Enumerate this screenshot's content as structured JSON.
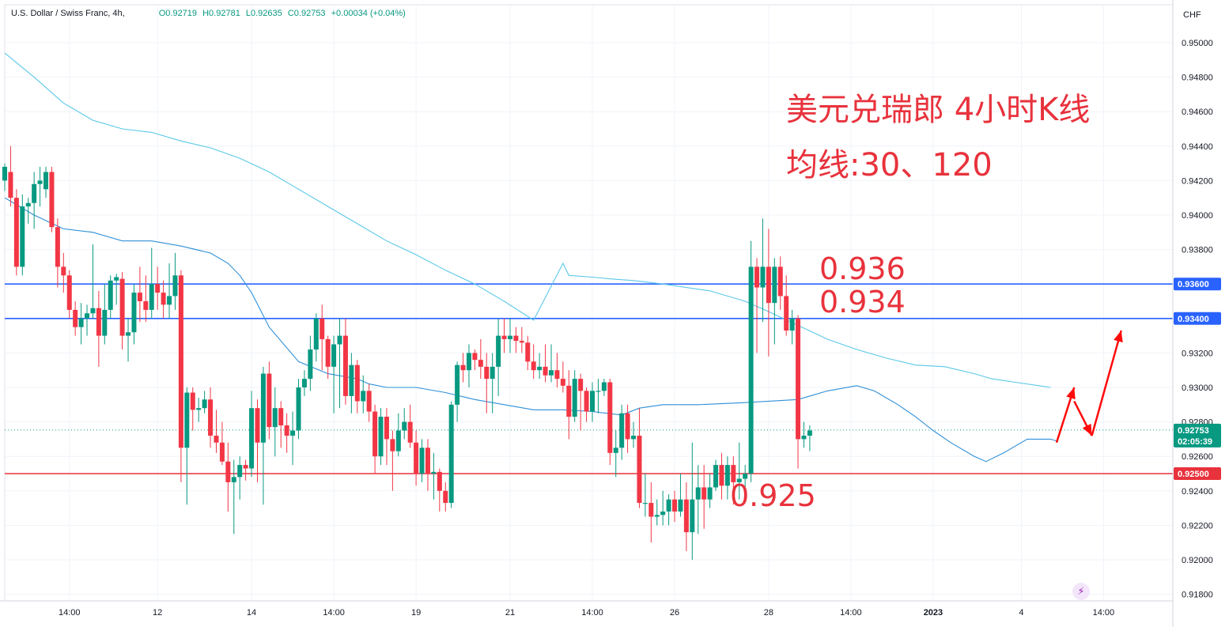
{
  "header": {
    "symbol": "U.S. Dollar / Swiss Franc, 4h,",
    "open": "O0.92719",
    "high": "H0.92781",
    "low": "L0.92635",
    "close": "C0.92753",
    "change": "+0.00034 (+0.04%)"
  },
  "annotations": {
    "title_line1": "美元兑瑞郎 4小时K线",
    "title_line2": "均线:30、120",
    "level_936": "0.936",
    "level_934": "0.934",
    "level_925": "0.925"
  },
  "colors": {
    "up": "#089981",
    "down": "#f23645",
    "ma30": "#2e8fd8",
    "ma120": "#5ac8e8",
    "resistance": "#2962ff",
    "support": "#e8323c",
    "annotation": "#e8323c"
  },
  "chart_data": {
    "type": "candlestick",
    "currency": "CHF",
    "ylim": [
      0.917,
      0.951
    ],
    "y_ticks": [
      "0.95000",
      "0.94800",
      "0.94600",
      "0.94400",
      "0.94200",
      "0.94000",
      "0.93800",
      "0.93600",
      "0.93400",
      "0.93200",
      "0.93000",
      "0.92800",
      "0.92600",
      "0.92400",
      "0.92200",
      "0.92000",
      "0.91800"
    ],
    "x_ticks": [
      {
        "label": "14:00",
        "bar": 11
      },
      {
        "label": "12",
        "bar": 26
      },
      {
        "label": "14",
        "bar": 42
      },
      {
        "label": "14:00",
        "bar": 56
      },
      {
        "label": "19",
        "bar": 70
      },
      {
        "label": "21",
        "bar": 86
      },
      {
        "label": "14:00",
        "bar": 100
      },
      {
        "label": "26",
        "bar": 114
      },
      {
        "label": "28",
        "bar": 130
      },
      {
        "label": "14:00",
        "bar": 144
      },
      {
        "label": "2023",
        "bar": 158
      },
      {
        "label": "4",
        "bar": 173
      },
      {
        "label": "14:00",
        "bar": 187
      }
    ],
    "bar_count": 192,
    "horizontal_lines": [
      {
        "value": 0.936,
        "label": "0.93600",
        "kind": "resistance"
      },
      {
        "value": 0.934,
        "label": "0.93400",
        "kind": "resistance"
      },
      {
        "value": 0.925,
        "label": "0.92500",
        "kind": "support"
      }
    ],
    "last_price": {
      "value": 0.92753,
      "label": "0.92753",
      "countdown": "02:05:39"
    },
    "ma_periods": [
      30,
      120
    ],
    "ma30": [
      [
        0,
        0.941
      ],
      [
        5,
        0.94
      ],
      [
        10,
        0.9392
      ],
      [
        15,
        0.939
      ],
      [
        20,
        0.9385
      ],
      [
        25,
        0.9385
      ],
      [
        30,
        0.9382
      ],
      [
        35,
        0.9378
      ],
      [
        38,
        0.9372
      ],
      [
        40,
        0.9365
      ],
      [
        42,
        0.9355
      ],
      [
        45,
        0.9335
      ],
      [
        50,
        0.9315
      ],
      [
        55,
        0.9308
      ],
      [
        60,
        0.9305
      ],
      [
        62,
        0.9302
      ],
      [
        65,
        0.93
      ],
      [
        70,
        0.93
      ],
      [
        75,
        0.9297
      ],
      [
        80,
        0.9293
      ],
      [
        85,
        0.929
      ],
      [
        90,
        0.9287
      ],
      [
        95,
        0.9287
      ],
      [
        100,
        0.9286
      ],
      [
        105,
        0.9284
      ],
      [
        108,
        0.9288
      ],
      [
        112,
        0.929
      ],
      [
        118,
        0.929
      ],
      [
        125,
        0.9291
      ],
      [
        130,
        0.9292
      ],
      [
        135,
        0.9293
      ],
      [
        140,
        0.9298
      ],
      [
        145,
        0.9301
      ],
      [
        148,
        0.9298
      ],
      [
        152,
        0.929
      ],
      [
        155,
        0.9283
      ],
      [
        158,
        0.9275
      ],
      [
        161,
        0.9268
      ],
      [
        165,
        0.926
      ],
      [
        167,
        0.9257
      ],
      [
        170,
        0.9262
      ],
      [
        174,
        0.927
      ],
      [
        178,
        0.927
      ],
      [
        179,
        0.9269
      ]
    ],
    "ma120": [
      [
        0,
        0.9494
      ],
      [
        5,
        0.948
      ],
      [
        10,
        0.9465
      ],
      [
        15,
        0.9455
      ],
      [
        20,
        0.945
      ],
      [
        25,
        0.9448
      ],
      [
        30,
        0.9443
      ],
      [
        35,
        0.9439
      ],
      [
        40,
        0.9433
      ],
      [
        45,
        0.9425
      ],
      [
        50,
        0.9415
      ],
      [
        55,
        0.9405
      ],
      [
        60,
        0.9395
      ],
      [
        65,
        0.9385
      ],
      [
        70,
        0.9377
      ],
      [
        75,
        0.9368
      ],
      [
        80,
        0.936
      ],
      [
        85,
        0.935
      ],
      [
        90,
        0.9339
      ],
      [
        95,
        0.9372
      ],
      [
        96,
        0.9365
      ],
      [
        100,
        0.9364
      ],
      [
        103,
        0.9363
      ],
      [
        107,
        0.9362
      ],
      [
        112,
        0.936
      ],
      [
        120,
        0.9356
      ],
      [
        126,
        0.935
      ],
      [
        130,
        0.9344
      ],
      [
        135,
        0.9336
      ],
      [
        140,
        0.9328
      ],
      [
        145,
        0.9322
      ],
      [
        150,
        0.9317
      ],
      [
        155,
        0.9313
      ],
      [
        160,
        0.9312
      ],
      [
        165,
        0.9308
      ],
      [
        168,
        0.9305
      ],
      [
        172,
        0.9303
      ],
      [
        176,
        0.9301
      ],
      [
        178,
        0.93
      ]
    ],
    "candles": [
      [
        0.942,
        0.9428,
        0.9414,
        0.943
      ],
      [
        0.9425,
        0.941,
        0.9405,
        0.944
      ],
      [
        0.941,
        0.937,
        0.9365,
        0.9415
      ],
      [
        0.937,
        0.9405,
        0.9365,
        0.9412
      ],
      [
        0.9405,
        0.9407,
        0.9395,
        0.941
      ],
      [
        0.9407,
        0.9418,
        0.9392,
        0.9425
      ],
      [
        0.9418,
        0.942,
        0.9405,
        0.9428
      ],
      [
        0.9415,
        0.9425,
        0.941,
        0.9428
      ],
      [
        0.9425,
        0.9393,
        0.939,
        0.9428
      ],
      [
        0.9393,
        0.937,
        0.9358,
        0.9398
      ],
      [
        0.937,
        0.9365,
        0.9355,
        0.9378
      ],
      [
        0.9365,
        0.9345,
        0.934,
        0.9368
      ],
      [
        0.9345,
        0.9335,
        0.933,
        0.935
      ],
      [
        0.9335,
        0.934,
        0.9325,
        0.9349
      ],
      [
        0.934,
        0.9343,
        0.933,
        0.9348
      ],
      [
        0.9343,
        0.9346,
        0.934,
        0.9383
      ],
      [
        0.9346,
        0.933,
        0.9312,
        0.9356
      ],
      [
        0.933,
        0.9345,
        0.9325,
        0.936
      ],
      [
        0.9345,
        0.9362,
        0.934,
        0.9365
      ],
      [
        0.9362,
        0.9364,
        0.9348,
        0.9366
      ],
      [
        0.9363,
        0.933,
        0.9322,
        0.9367
      ],
      [
        0.933,
        0.9332,
        0.9315,
        0.934
      ],
      [
        0.9332,
        0.9355,
        0.9325,
        0.936
      ],
      [
        0.9355,
        0.935,
        0.9338,
        0.937
      ],
      [
        0.935,
        0.9345,
        0.9338,
        0.9365
      ],
      [
        0.9345,
        0.936,
        0.934,
        0.9381
      ],
      [
        0.936,
        0.9355,
        0.9345,
        0.937
      ],
      [
        0.9355,
        0.9348,
        0.934,
        0.9362
      ],
      [
        0.9348,
        0.9353,
        0.934,
        0.9372
      ],
      [
        0.9353,
        0.9365,
        0.9345,
        0.9378
      ],
      [
        0.9365,
        0.9265,
        0.9245,
        0.9368
      ],
      [
        0.9265,
        0.9297,
        0.9232,
        0.93
      ],
      [
        0.9297,
        0.9287,
        0.9275,
        0.93
      ],
      [
        0.9287,
        0.9288,
        0.928,
        0.9294
      ],
      [
        0.9288,
        0.9293,
        0.9285,
        0.9298
      ],
      [
        0.9293,
        0.9272,
        0.9265,
        0.93
      ],
      [
        0.9272,
        0.9268,
        0.9262,
        0.9287
      ],
      [
        0.9268,
        0.9257,
        0.9255,
        0.928
      ],
      [
        0.9257,
        0.9245,
        0.9228,
        0.9268
      ],
      [
        0.9245,
        0.9248,
        0.9215,
        0.9258
      ],
      [
        0.9248,
        0.9255,
        0.9235,
        0.926
      ],
      [
        0.9255,
        0.9253,
        0.9246,
        0.9258
      ],
      [
        0.9253,
        0.9288,
        0.9248,
        0.9298
      ],
      [
        0.9288,
        0.9268,
        0.9245,
        0.9293
      ],
      [
        0.9268,
        0.9308,
        0.9232,
        0.9312
      ],
      [
        0.9308,
        0.9277,
        0.927,
        0.9315
      ],
      [
        0.9277,
        0.9288,
        0.926,
        0.93
      ],
      [
        0.9288,
        0.9278,
        0.9265,
        0.9292
      ],
      [
        0.9278,
        0.9272,
        0.9262,
        0.9285
      ],
      [
        0.9272,
        0.9275,
        0.9255,
        0.9286
      ],
      [
        0.9275,
        0.93,
        0.927,
        0.9305
      ],
      [
        0.93,
        0.9305,
        0.9295,
        0.931
      ],
      [
        0.9305,
        0.9322,
        0.9298,
        0.933
      ],
      [
        0.9322,
        0.934,
        0.9315,
        0.9343
      ],
      [
        0.934,
        0.9328,
        0.931,
        0.9348
      ],
      [
        0.9328,
        0.9312,
        0.9305,
        0.933
      ],
      [
        0.9312,
        0.9325,
        0.9285,
        0.933
      ],
      [
        0.9325,
        0.933,
        0.9288,
        0.934
      ],
      [
        0.933,
        0.9295,
        0.929,
        0.934
      ],
      [
        0.9295,
        0.9313,
        0.9285,
        0.932
      ],
      [
        0.9313,
        0.9292,
        0.9285,
        0.9316
      ],
      [
        0.9292,
        0.9298,
        0.9285,
        0.9307
      ],
      [
        0.9298,
        0.9286,
        0.928,
        0.9302
      ],
      [
        0.9286,
        0.926,
        0.925,
        0.929
      ],
      [
        0.926,
        0.9283,
        0.9255,
        0.9288
      ],
      [
        0.9283,
        0.927,
        0.9255,
        0.9288
      ],
      [
        0.927,
        0.9263,
        0.924,
        0.9275
      ],
      [
        0.9263,
        0.9275,
        0.926,
        0.9285
      ],
      [
        0.9275,
        0.928,
        0.927,
        0.9288
      ],
      [
        0.928,
        0.9268,
        0.9265,
        0.929
      ],
      [
        0.9268,
        0.925,
        0.9243,
        0.9275
      ],
      [
        0.925,
        0.9265,
        0.9245,
        0.927
      ],
      [
        0.9265,
        0.925,
        0.924,
        0.927
      ],
      [
        0.925,
        0.9251,
        0.9235,
        0.9262
      ],
      [
        0.9251,
        0.924,
        0.9228,
        0.9253
      ],
      [
        0.924,
        0.9233,
        0.9228,
        0.9245
      ],
      [
        0.9233,
        0.929,
        0.923,
        0.9292
      ],
      [
        0.929,
        0.9313,
        0.928,
        0.9315
      ],
      [
        0.9313,
        0.931,
        0.9303,
        0.932
      ],
      [
        0.931,
        0.932,
        0.93,
        0.9325
      ],
      [
        0.932,
        0.9316,
        0.931,
        0.9322
      ],
      [
        0.9316,
        0.9312,
        0.9305,
        0.9328
      ],
      [
        0.9312,
        0.9305,
        0.9285,
        0.932
      ],
      [
        0.9305,
        0.9312,
        0.9285,
        0.932
      ],
      [
        0.9312,
        0.933,
        0.9295,
        0.934
      ],
      [
        0.933,
        0.9328,
        0.932,
        0.934
      ],
      [
        0.9328,
        0.933,
        0.932,
        0.934
      ],
      [
        0.933,
        0.9327,
        0.932,
        0.9335
      ],
      [
        0.9327,
        0.9326,
        0.932,
        0.9335
      ],
      [
        0.9326,
        0.9315,
        0.931,
        0.933
      ],
      [
        0.9315,
        0.931,
        0.9305,
        0.9325
      ],
      [
        0.931,
        0.9312,
        0.9305,
        0.932
      ],
      [
        0.9312,
        0.9307,
        0.9303,
        0.9325
      ],
      [
        0.9307,
        0.931,
        0.9303,
        0.9325
      ],
      [
        0.931,
        0.9305,
        0.93,
        0.932
      ],
      [
        0.9305,
        0.9301,
        0.9297,
        0.9315
      ],
      [
        0.9301,
        0.9283,
        0.927,
        0.931
      ],
      [
        0.9283,
        0.9305,
        0.928,
        0.931
      ],
      [
        0.9305,
        0.9298,
        0.9275,
        0.9308
      ],
      [
        0.9298,
        0.9286,
        0.928,
        0.93
      ],
      [
        0.9286,
        0.9298,
        0.928,
        0.9303
      ],
      [
        0.9298,
        0.9298,
        0.9285,
        0.9305
      ],
      [
        0.9298,
        0.9303,
        0.9295,
        0.9305
      ],
      [
        0.9303,
        0.9262,
        0.9255,
        0.9305
      ],
      [
        0.9262,
        0.9265,
        0.9248,
        0.9275
      ],
      [
        0.9265,
        0.9285,
        0.9258,
        0.929
      ],
      [
        0.9285,
        0.927,
        0.9262,
        0.929
      ],
      [
        0.927,
        0.9272,
        0.9265,
        0.928
      ],
      [
        0.9272,
        0.9233,
        0.923,
        0.9288
      ],
      [
        0.9233,
        0.9233,
        0.9225,
        0.925
      ],
      [
        0.9233,
        0.9225,
        0.921,
        0.9245
      ],
      [
        0.9225,
        0.9226,
        0.922,
        0.9235
      ],
      [
        0.9226,
        0.9228,
        0.922,
        0.924
      ],
      [
        0.9228,
        0.9235,
        0.922,
        0.9238
      ],
      [
        0.9235,
        0.9228,
        0.9222,
        0.924
      ],
      [
        0.9228,
        0.9235,
        0.9225,
        0.925
      ],
      [
        0.9235,
        0.9216,
        0.9205,
        0.9245
      ],
      [
        0.9216,
        0.9235,
        0.92,
        0.9268
      ],
      [
        0.9235,
        0.9242,
        0.9215,
        0.9255
      ],
      [
        0.9242,
        0.9235,
        0.9218,
        0.9255
      ],
      [
        0.9235,
        0.9242,
        0.923,
        0.925
      ],
      [
        0.9242,
        0.9255,
        0.924,
        0.9258
      ],
      [
        0.9255,
        0.9243,
        0.9235,
        0.9262
      ],
      [
        0.9243,
        0.9255,
        0.9235,
        0.926
      ],
      [
        0.9255,
        0.9245,
        0.9232,
        0.926
      ],
      [
        0.9245,
        0.9247,
        0.9235,
        0.9268
      ],
      [
        0.9247,
        0.925,
        0.924,
        0.9255
      ],
      [
        0.925,
        0.937,
        0.9245,
        0.9385
      ],
      [
        0.937,
        0.9358,
        0.932,
        0.9375
      ],
      [
        0.9358,
        0.937,
        0.9338,
        0.9398
      ],
      [
        0.937,
        0.9349,
        0.9318,
        0.9392
      ],
      [
        0.9349,
        0.937,
        0.9325,
        0.9375
      ],
      [
        0.937,
        0.9353,
        0.9345,
        0.9376
      ],
      [
        0.9353,
        0.9333,
        0.933,
        0.9365
      ],
      [
        0.9333,
        0.934,
        0.9325,
        0.9345
      ],
      [
        0.934,
        0.927,
        0.9253,
        0.9342
      ],
      [
        0.927,
        0.9272,
        0.9265,
        0.928
      ],
      [
        0.9272,
        0.9275,
        0.9263,
        0.9278
      ]
    ],
    "candle_start_bar": 0,
    "forecast_arrows": [
      {
        "from": [
          179,
          0.9268
        ],
        "to": [
          182,
          0.93
        ]
      },
      {
        "from": [
          182,
          0.9292
        ],
        "to": [
          185,
          0.9272
        ]
      },
      {
        "from": [
          185,
          0.9272
        ],
        "to": [
          190,
          0.9333
        ]
      }
    ]
  }
}
